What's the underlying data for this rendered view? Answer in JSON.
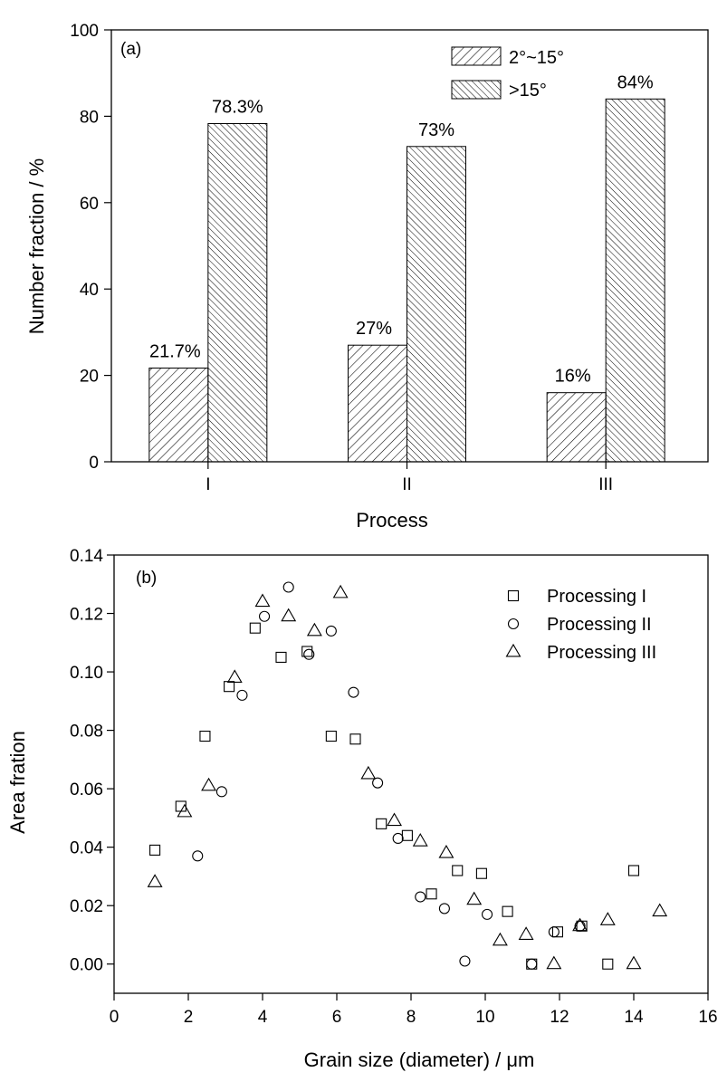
{
  "chart_data": [
    {
      "type": "bar",
      "panel_label": "(a)",
      "xlabel": "Process",
      "ylabel": "Number fraction / %",
      "ylim": [
        0,
        100
      ],
      "yticks": [
        "0",
        "20",
        "40",
        "60",
        "80",
        "100"
      ],
      "categories": [
        "I",
        "II",
        "III"
      ],
      "series": [
        {
          "name": "2°~15°",
          "pattern": "hatch-forward",
          "values": [
            21.7,
            27,
            16
          ],
          "labels": [
            "21.7%",
            "27%",
            "16%"
          ]
        },
        {
          "name": ">15°",
          "pattern": "hatch-back",
          "values": [
            78.3,
            73,
            84
          ],
          "labels": [
            "78.3%",
            "73%",
            "84%"
          ]
        }
      ],
      "legend_position": "top-right",
      "grid": false
    },
    {
      "type": "scatter",
      "panel_label": "(b)",
      "xlabel": "Grain size (diameter) / μm",
      "ylabel": "Area fration",
      "xlim": [
        0,
        16
      ],
      "ylim": [
        -0.01,
        0.14
      ],
      "xticks": [
        "0",
        "2",
        "4",
        "6",
        "8",
        "10",
        "12",
        "14",
        "16"
      ],
      "yticks": [
        "0.00",
        "0.02",
        "0.04",
        "0.06",
        "0.08",
        "0.10",
        "0.12",
        "0.14"
      ],
      "legend_position": "top-right",
      "grid": false,
      "series": [
        {
          "name": "Processing I",
          "marker": "square",
          "points": [
            [
              1.1,
              0.039
            ],
            [
              1.8,
              0.054
            ],
            [
              2.45,
              0.078
            ],
            [
              3.1,
              0.095
            ],
            [
              3.8,
              0.115
            ],
            [
              4.5,
              0.105
            ],
            [
              5.2,
              0.107
            ],
            [
              5.85,
              0.078
            ],
            [
              6.5,
              0.077
            ],
            [
              7.2,
              0.048
            ],
            [
              7.9,
              0.044
            ],
            [
              8.55,
              0.024
            ],
            [
              9.25,
              0.032
            ],
            [
              9.9,
              0.031
            ],
            [
              10.6,
              0.018
            ],
            [
              11.25,
              0.0
            ],
            [
              11.95,
              0.011
            ],
            [
              12.6,
              0.013
            ],
            [
              13.3,
              0.0
            ],
            [
              14.0,
              0.032
            ]
          ]
        },
        {
          "name": "Processing II",
          "marker": "circle",
          "points": [
            [
              2.25,
              0.037
            ],
            [
              2.9,
              0.059
            ],
            [
              3.45,
              0.092
            ],
            [
              4.05,
              0.119
            ],
            [
              4.7,
              0.129
            ],
            [
              5.25,
              0.106
            ],
            [
              5.85,
              0.114
            ],
            [
              6.45,
              0.093
            ],
            [
              7.1,
              0.062
            ],
            [
              7.65,
              0.043
            ],
            [
              8.25,
              0.023
            ],
            [
              8.9,
              0.019
            ],
            [
              9.45,
              0.001
            ],
            [
              10.05,
              0.017
            ],
            [
              11.25,
              0.0
            ],
            [
              11.85,
              0.011
            ],
            [
              12.55,
              0.013
            ]
          ]
        },
        {
          "name": "Processing III",
          "marker": "triangle",
          "points": [
            [
              1.1,
              0.028
            ],
            [
              1.9,
              0.052
            ],
            [
              2.55,
              0.061
            ],
            [
              3.25,
              0.098
            ],
            [
              4.0,
              0.124
            ],
            [
              4.7,
              0.119
            ],
            [
              5.4,
              0.114
            ],
            [
              6.1,
              0.127
            ],
            [
              6.85,
              0.065
            ],
            [
              7.55,
              0.049
            ],
            [
              8.25,
              0.042
            ],
            [
              8.95,
              0.038
            ],
            [
              9.7,
              0.022
            ],
            [
              10.4,
              0.008
            ],
            [
              11.1,
              0.01
            ],
            [
              11.85,
              0.0
            ],
            [
              12.55,
              0.013
            ],
            [
              13.3,
              0.015
            ],
            [
              14.0,
              0.0
            ],
            [
              14.7,
              0.018
            ]
          ]
        }
      ]
    }
  ]
}
